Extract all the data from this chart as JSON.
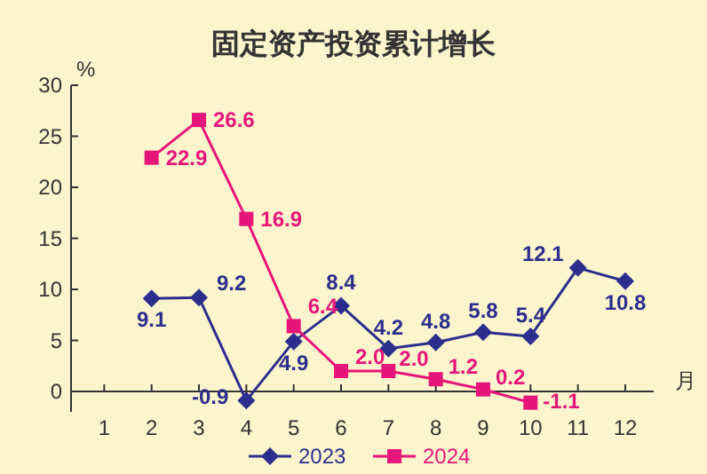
{
  "chart_data": {
    "type": "line",
    "title": "固定资产投资累计增长",
    "ylabel": "%",
    "xlabel": "月",
    "x": [
      2,
      3,
      4,
      5,
      6,
      7,
      8,
      9,
      10,
      11,
      12
    ],
    "xlim": [
      0.3,
      12.6
    ],
    "xticks": [
      1,
      2,
      3,
      4,
      5,
      6,
      7,
      8,
      9,
      10,
      11,
      12
    ],
    "ylim": [
      -2,
      30
    ],
    "yticks": [
      0,
      5,
      10,
      15,
      20,
      25,
      30
    ],
    "legend": "bottom",
    "line_style": "solid",
    "series": [
      {
        "name": "2023",
        "color": "#2b2e8c",
        "marker": "diamond",
        "values": [
          9.1,
          9.2,
          -0.9,
          4.9,
          8.4,
          4.2,
          4.8,
          5.8,
          5.4,
          12.1,
          10.8
        ],
        "value_labels": [
          "9.1",
          "9.2",
          "-0.9",
          "4.9",
          "8.4",
          "4.2",
          "4.8",
          "5.8",
          "5.4",
          "12.1",
          "10.8"
        ]
      },
      {
        "name": "2024",
        "color": "#e6157a",
        "marker": "square",
        "values": [
          22.9,
          26.6,
          16.9,
          6.4,
          2.0,
          2.0,
          1.2,
          0.2,
          -1.1,
          null,
          null
        ],
        "value_labels": [
          "22.9",
          "26.6",
          "16.9",
          "6.4",
          "2.0",
          "2.0",
          "1.2",
          "0.2",
          "-1.1",
          null,
          null
        ]
      }
    ]
  }
}
